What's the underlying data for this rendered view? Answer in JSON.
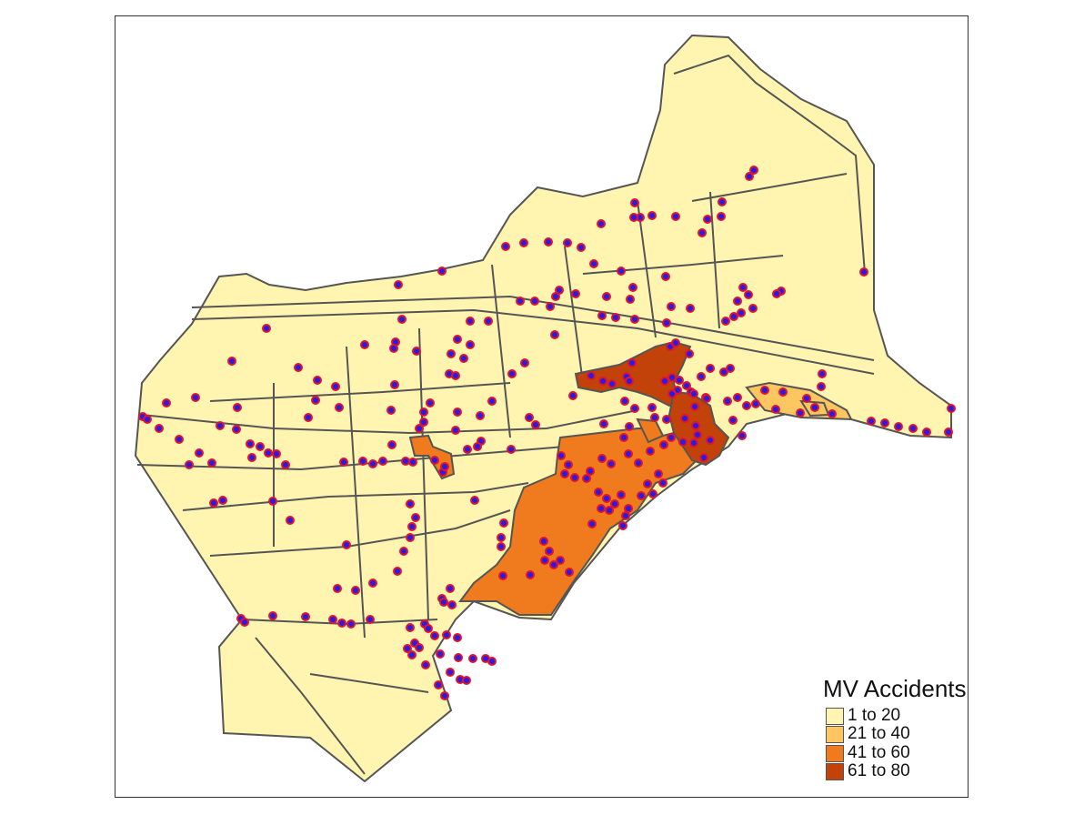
{
  "map": {
    "legend": {
      "title": "MV Accidents",
      "classes": [
        {
          "label": "1 to 20",
          "color": "#FFF5B0"
        },
        {
          "label": "21 to 40",
          "color": "#FDC660"
        },
        {
          "label": "41 to 60",
          "color": "#F07A1E"
        },
        {
          "label": "61 to 80",
          "color": "#C2420A"
        }
      ]
    },
    "point_style": {
      "fill": "#2A1AE6",
      "stroke": "#E0142A"
    },
    "boundary_color": "#555555"
  }
}
